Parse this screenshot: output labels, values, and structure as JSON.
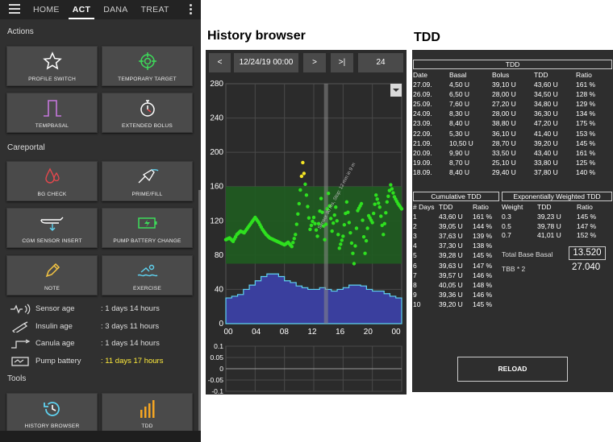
{
  "act": {
    "tabs": [
      "HOME",
      "ACT",
      "DANA",
      "TREAT"
    ],
    "active_tab": "ACT",
    "sections": {
      "actions": "Actions",
      "careportal": "Careportal",
      "tools": "Tools"
    },
    "actions": [
      {
        "label": "PROFILE SWITCH",
        "icon": "star-icon"
      },
      {
        "label": "TEMPORARY TARGET",
        "icon": "target-icon"
      },
      {
        "label": "TEMPBASAL",
        "icon": "temp-basal-icon"
      },
      {
        "label": "EXTENDED BOLUS",
        "icon": "stopwatch-icon"
      }
    ],
    "careportal": [
      {
        "label": "BG CHECK",
        "icon": "blood-drop-icon"
      },
      {
        "label": "PRIME/FILL",
        "icon": "syringe-icon"
      },
      {
        "label": "CGM SENSOR INSERT",
        "icon": "cgm-sensor-icon"
      },
      {
        "label": "PUMP BATTERY CHANGE",
        "icon": "battery-icon"
      },
      {
        "label": "NOTE",
        "icon": "pencil-icon"
      },
      {
        "label": "EXERCISE",
        "icon": "swimmer-icon"
      }
    ],
    "status": [
      {
        "label": "Sensor age",
        "value": ": 1 days 14 hours",
        "icon": "sensor-age-icon",
        "warn": false
      },
      {
        "label": "Insulin age",
        "value": ": 3 days 11 hours",
        "icon": "insulin-icon",
        "warn": false
      },
      {
        "label": "Canula age",
        "value": ": 1 days 14 hours",
        "icon": "canula-icon",
        "warn": false
      },
      {
        "label": "Pump battery",
        "value": ": 11 days 17 hours",
        "icon": "pump-battery-icon",
        "warn": true
      }
    ],
    "tools": [
      {
        "label": "HISTORY BROWSER",
        "icon": "history-icon"
      },
      {
        "label": "TDD",
        "icon": "tdd-bars-icon"
      }
    ]
  },
  "history": {
    "title": "History browser",
    "prev_label": "<",
    "date_label": "12/24/19 00:00",
    "next_label": ">",
    "end_label": ">|",
    "range_label": "24",
    "annotation": "Sensor 30 ms, Stop: 12 mm in 9 m"
  },
  "chart_data": {
    "type": "line",
    "ylim": [
      0,
      280
    ],
    "yticks": [
      "280",
      "240",
      "200",
      "160",
      "120",
      "80",
      "40",
      "0"
    ],
    "xticks": [
      "00",
      "04",
      "08",
      "12",
      "16",
      "20",
      "00"
    ],
    "target_range": [
      70,
      160
    ],
    "bg_x_hours": [
      0,
      0.5,
      1,
      1.5,
      2,
      2.5,
      3,
      3.5,
      4,
      4.5,
      5,
      5.5,
      6,
      6.5,
      7,
      7.5,
      8,
      8.5,
      9,
      9.5,
      10,
      10.5,
      11,
      11.5,
      12,
      12.5,
      13,
      13.5,
      14,
      14.5,
      15,
      15.5,
      16,
      16.5,
      17,
      17.5,
      18,
      18.5,
      19,
      19.5,
      20,
      20.5,
      21,
      21.5,
      22,
      22.5,
      23,
      23.5,
      24
    ],
    "bg_values": [
      98,
      100,
      96,
      104,
      108,
      106,
      112,
      118,
      124,
      118,
      110,
      104,
      100,
      98,
      96,
      94,
      92,
      95,
      90,
      104,
      140,
      188,
      150,
      110,
      124,
      102,
      146,
      98,
      152,
      108,
      136,
      88,
      102,
      142,
      106,
      70,
      132,
      140,
      82,
      126,
      118,
      150,
      136,
      104,
      142,
      162,
      148,
      140,
      134
    ],
    "basal_x_hours": [
      0,
      0.8,
      1.6,
      2.4,
      3.2,
      4,
      4.8,
      5.6,
      6.4,
      7.2,
      8,
      8.8,
      9.6,
      10.4,
      11.2,
      12,
      12.8,
      13.6,
      14.4,
      15.2,
      16,
      16.8,
      17.6,
      18.4,
      19.2,
      20,
      20.8,
      21.6,
      22.4,
      23.2,
      24
    ],
    "basal_values": [
      30,
      32,
      34,
      40,
      45,
      50,
      55,
      58,
      58,
      55,
      50,
      48,
      44,
      42,
      40,
      40,
      42,
      40,
      38,
      40,
      42,
      45,
      45,
      44,
      40,
      38,
      38,
      35,
      32,
      30,
      30
    ],
    "iob_ticks": [
      "0.1",
      "0.05",
      "0",
      "-0.05",
      "-0.1"
    ],
    "colors": {
      "in_range": "#2ee01f",
      "high": "#f5e625",
      "target_band": "#1f5c20",
      "basal_fill": "#3a3f9e",
      "basal_line": "#5fd2f0"
    }
  },
  "tdd": {
    "title": "TDD",
    "table_title": "TDD",
    "headers": [
      "Date",
      "Basal",
      "Bolus",
      "TDD",
      "Ratio"
    ],
    "rows": [
      [
        "27.09.",
        "4,50 U",
        "39,10 U",
        "43,60 U",
        "161 %"
      ],
      [
        "26.09.",
        "6,50 U",
        "28,00 U",
        "34,50 U",
        "128 %"
      ],
      [
        "25.09.",
        "7,60 U",
        "27,20 U",
        "34,80 U",
        "129 %"
      ],
      [
        "24.09.",
        "8,30 U",
        "28,00 U",
        "36,30 U",
        "134 %"
      ],
      [
        "23.09.",
        "8,40 U",
        "38,80 U",
        "47,20 U",
        "175 %"
      ],
      [
        "22.09.",
        "5,30 U",
        "36,10 U",
        "41,40 U",
        "153 %"
      ],
      [
        "21.09.",
        "10,50 U",
        "28,70 U",
        "39,20 U",
        "145 %"
      ],
      [
        "20.09.",
        "9,90 U",
        "33,50 U",
        "43,40 U",
        "161 %"
      ],
      [
        "19.09.",
        "8,70 U",
        "25,10 U",
        "33,80 U",
        "125 %"
      ],
      [
        "18.09.",
        "8,40 U",
        "29,40 U",
        "37,80 U",
        "140 %"
      ]
    ],
    "cumulative_title": "Cumulative TDD",
    "cumulative_headers": [
      "# Days",
      "TDD",
      "Ratio"
    ],
    "cumulative_rows": [
      [
        "1",
        "43,60 U",
        "161 %"
      ],
      [
        "2",
        "39,05 U",
        "144 %"
      ],
      [
        "3",
        "37,63 U",
        "139 %"
      ],
      [
        "4",
        "37,30 U",
        "138 %"
      ],
      [
        "5",
        "39,28 U",
        "145 %"
      ],
      [
        "6",
        "39,63 U",
        "147 %"
      ],
      [
        "7",
        "39,57 U",
        "146 %"
      ],
      [
        "8",
        "40,05 U",
        "148 %"
      ],
      [
        "9",
        "39,36 U",
        "146 %"
      ],
      [
        "10",
        "39,20 U",
        "145 %"
      ]
    ],
    "ewa_title": "Exponentially Weighted TDD",
    "ewa_headers": [
      "Weight",
      "TDD",
      "Ratio"
    ],
    "ewa_rows": [
      [
        "0.3",
        "39,23 U",
        "145 %"
      ],
      [
        "0.5",
        "39,78 U",
        "147 %"
      ],
      [
        "0.7",
        "41,01 U",
        "152 %"
      ]
    ],
    "total_base_basal_label": "Total Base Basal",
    "total_base_basal_value": "13.520",
    "tbb2_label": "TBB * 2",
    "tbb2_value": "27.040",
    "reload_label": "RELOAD"
  }
}
